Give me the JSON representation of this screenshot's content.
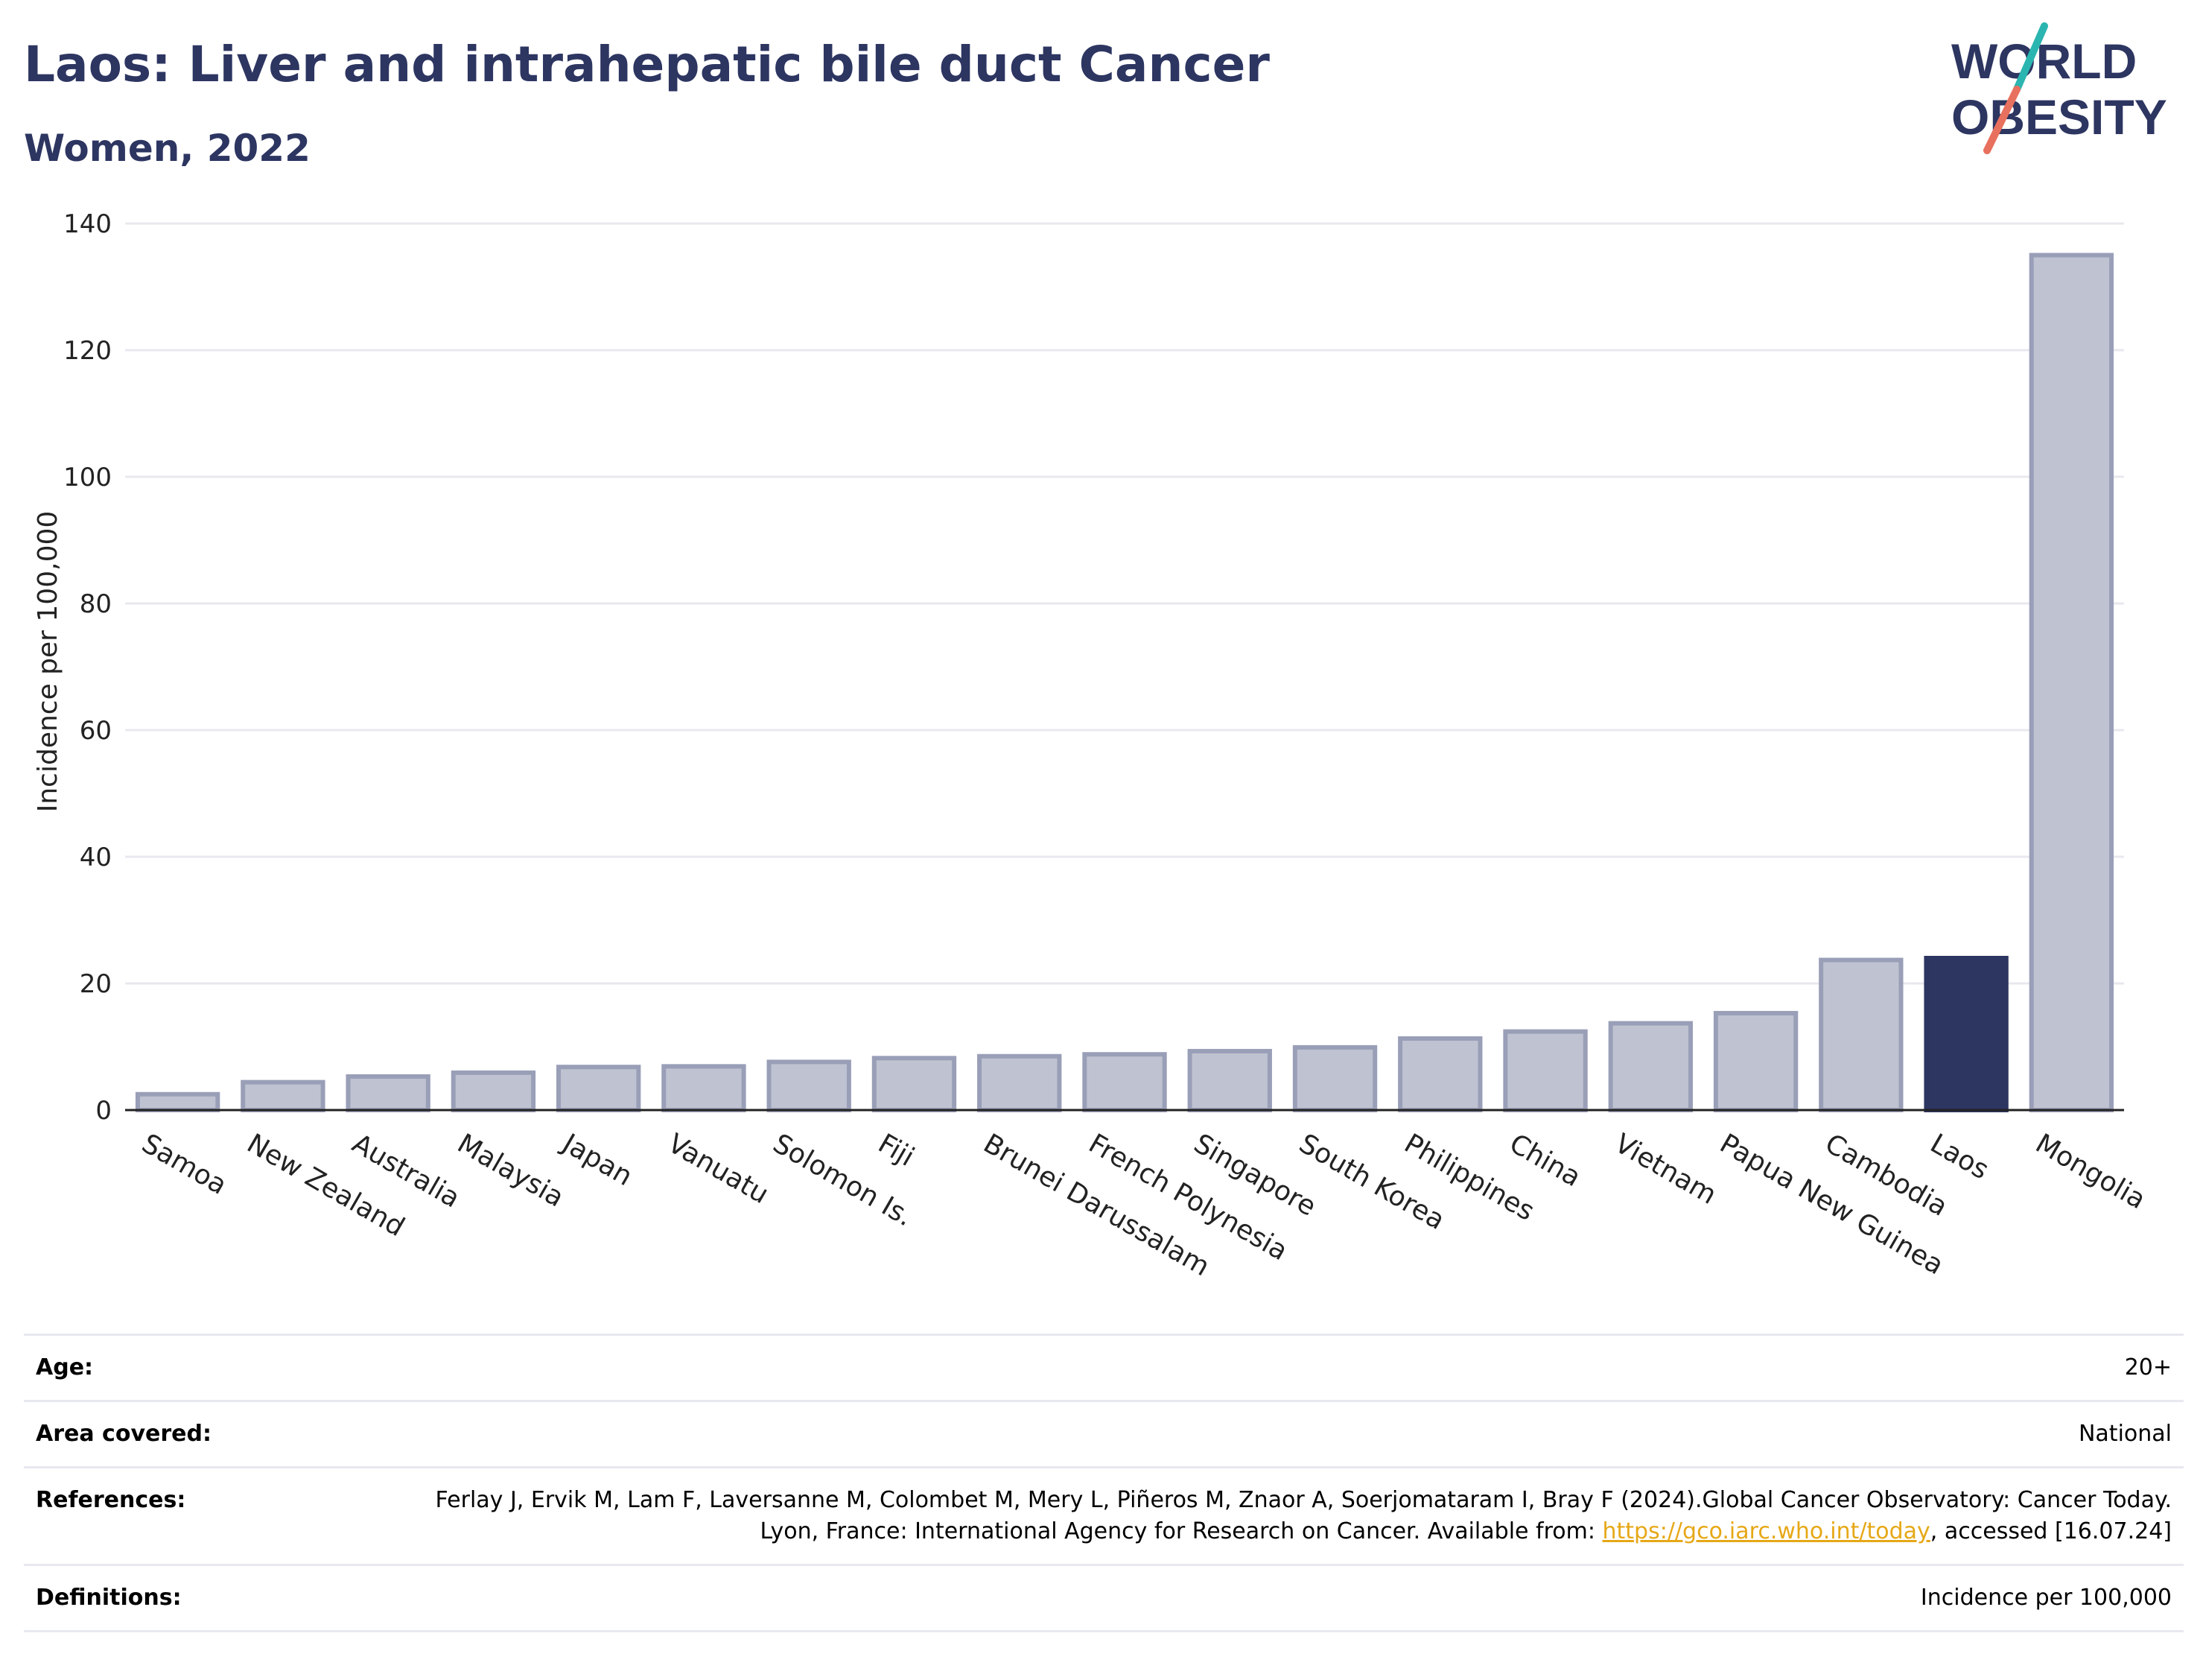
{
  "header": {
    "title": "Laos: Liver and intrahepatic bile duct Cancer",
    "subtitle": "Women, 2022"
  },
  "logo": {
    "line1": "WORLD",
    "line2": "OBESITY",
    "colors": {
      "text": "#2d3561",
      "slash_teal": "#2bb5b0",
      "slash_coral": "#e8705e"
    }
  },
  "colors": {
    "bar": "#bfc3d1",
    "bar_edge": "#9a9fb8",
    "highlight": "#2d3561",
    "grid": "#e8e8ef",
    "axis": "#222222"
  },
  "chart_data": {
    "type": "bar",
    "title": "Laos: Liver and intrahepatic bile duct Cancer",
    "subtitle": "Women, 2022",
    "xlabel": "",
    "ylabel": "Incidence per 100,000",
    "ylim": [
      0,
      140
    ],
    "yticks": [
      0,
      20,
      40,
      60,
      80,
      100,
      120,
      140
    ],
    "grid": true,
    "highlight": "Laos",
    "categories": [
      "Samoa",
      "New Zealand",
      "Australia",
      "Malaysia",
      "Japan",
      "Vanuatu",
      "Solomon Is.",
      "Fiji",
      "Brunei Darussalam",
      "French Polynesia",
      "Singapore",
      "South Korea",
      "Philippines",
      "China",
      "Vietnam",
      "Papua New Guinea",
      "Cambodia",
      "Laos",
      "Mongolia"
    ],
    "values": [
      2.5,
      4.4,
      5.3,
      5.9,
      6.8,
      6.9,
      7.6,
      8.2,
      8.5,
      8.8,
      9.3,
      9.9,
      11.3,
      12.4,
      13.7,
      15.3,
      23.7,
      24.0,
      135.0
    ]
  },
  "info": {
    "age_label": "Age:",
    "age_value": "20+",
    "area_label": "Area covered:",
    "area_value": "National",
    "references_label": "References:",
    "references_text": "Ferlay J, Ervik M, Lam F, Laversanne M, Colombet M, Mery L, Piñeros M, Znaor A, Soerjomataram I, Bray F (2024).Global Cancer Observatory: Cancer Today. Lyon, France: International Agency for Research on Cancer. Available from:",
    "references_link": "https://gco.iarc.who.int/today",
    "references_tail": ", accessed [16.07.24]",
    "definitions_label": "Definitions:",
    "definitions_value": "Incidence per 100,000"
  }
}
